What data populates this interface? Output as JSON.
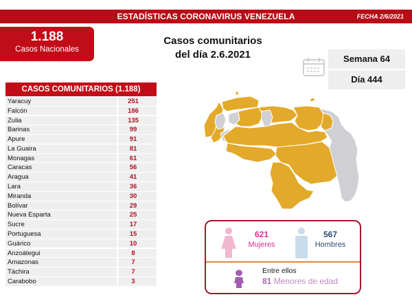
{
  "header": {
    "title": "ESTADÍSTICAS CORONAVIRUS VENEZUELA",
    "date": "FECHA 2/6/2021",
    "color": "#b80c16"
  },
  "national": {
    "value": "1.188",
    "label": "Casos Nacionales"
  },
  "headline": {
    "line1": "Casos comunitarios",
    "line2": "del día 2.6.2021"
  },
  "info": {
    "calendar_icon": "calendar-icon",
    "week": "Semana 64",
    "day": "Día 444"
  },
  "community_table": {
    "title": "CASOS COMUNITARIOS (1.188)",
    "rows": [
      {
        "state": "Yaracuy",
        "cases": "251"
      },
      {
        "state": "Falcón",
        "cases": "186"
      },
      {
        "state": "Zulia",
        "cases": "135"
      },
      {
        "state": "Barinas",
        "cases": "99"
      },
      {
        "state": "Apure",
        "cases": "91"
      },
      {
        "state": "La Guaira",
        "cases": "81"
      },
      {
        "state": "Monagas",
        "cases": "61"
      },
      {
        "state": "Caracas",
        "cases": "56"
      },
      {
        "state": "Aragua",
        "cases": "41"
      },
      {
        "state": "Lara",
        "cases": "36"
      },
      {
        "state": "Miranda",
        "cases": "30"
      },
      {
        "state": "Bolívar",
        "cases": "29"
      },
      {
        "state": "Nueva Esparta",
        "cases": "25"
      },
      {
        "state": "Sucre",
        "cases": "17"
      },
      {
        "state": "Portuguesa",
        "cases": "15"
      },
      {
        "state": "Guárico",
        "cases": "10"
      },
      {
        "state": "Anzoátegui",
        "cases": "8"
      },
      {
        "state": "Amazonas",
        "cases": "7"
      },
      {
        "state": "Táchira",
        "cases": "7"
      },
      {
        "state": "Carabobo",
        "cases": "3"
      }
    ]
  },
  "map": {
    "affected_color": "#e3a92a",
    "unaffected_color": "#d0d0d4"
  },
  "gender": {
    "women": {
      "value": "621",
      "label": "Mujeres",
      "color": "#d6309a",
      "icon": "woman-icon"
    },
    "men": {
      "value": "567",
      "label": "Hombres",
      "color": "#2d4a78",
      "icon": "man-icon"
    },
    "minors": {
      "intro": "Entre ellos",
      "value": "81",
      "label": "Menores de edad",
      "icon": "child-icon"
    }
  }
}
